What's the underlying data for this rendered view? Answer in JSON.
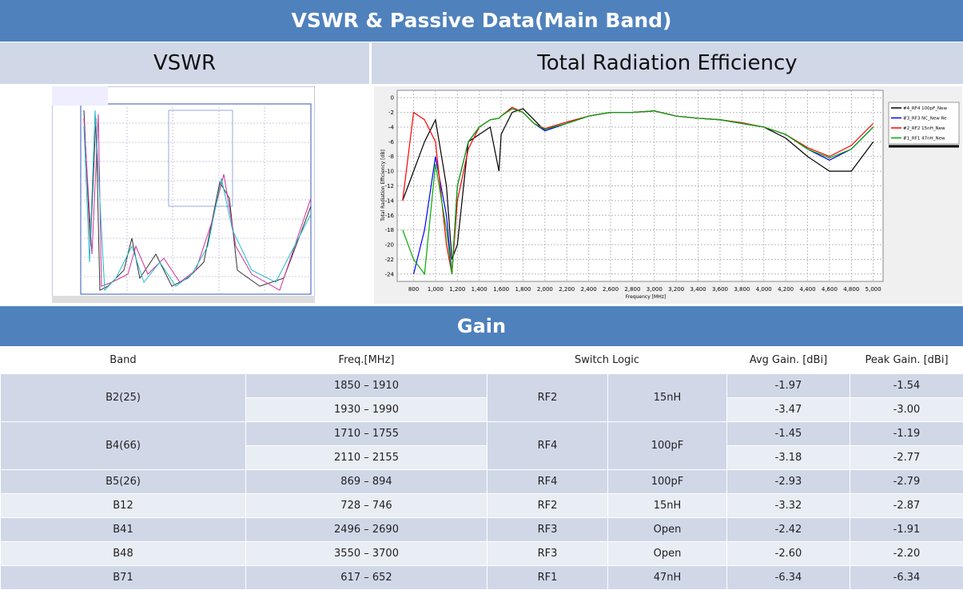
{
  "header": {
    "title": "VSWR & Passive Data(Main Band)"
  },
  "panels": {
    "left_title": "VSWR",
    "right_title": "Total Radiation Efficiency"
  },
  "efficiency_chart": {
    "type": "line",
    "xlabel": "Frequency [MHz]",
    "ylabel": "Total Radiation Efficiency [dB]",
    "xlim": [
      650,
      5090
    ],
    "ylim": [
      -25,
      1
    ],
    "xticks": [
      800,
      {
        "value": 1000,
        "label": "1,000"
      },
      {
        "value": 1200,
        "label": "1,200"
      },
      {
        "value": 1400,
        "label": "1,400"
      },
      {
        "value": 1600,
        "label": "1,600"
      },
      {
        "value": 1800,
        "label": "1,800"
      },
      {
        "value": 2000,
        "label": "2,000"
      },
      {
        "value": 2200,
        "label": "2,200"
      },
      {
        "value": 2400,
        "label": "2,400"
      },
      {
        "value": 2600,
        "label": "2,600"
      },
      {
        "value": 2800,
        "label": "2,800"
      },
      {
        "value": 3000,
        "label": "3,000"
      },
      {
        "value": 3200,
        "label": "3,200"
      },
      {
        "value": 3400,
        "label": "3,400"
      },
      {
        "value": 3600,
        "label": "3,600"
      },
      {
        "value": 3800,
        "label": "3,800"
      },
      {
        "value": 4000,
        "label": "4,000"
      },
      {
        "value": 4200,
        "label": "4,200"
      },
      {
        "value": 4400,
        "label": "4,400"
      },
      {
        "value": 4600,
        "label": "4,600"
      },
      {
        "value": 4800,
        "label": "4,800"
      },
      {
        "value": 5000,
        "label": "5,000"
      }
    ],
    "yticks": [
      0,
      -2,
      -4,
      -6,
      -8,
      -10,
      -12,
      -14,
      -16,
      -18,
      -20,
      -22,
      -24
    ],
    "grid": true,
    "x": [
      700,
      800,
      900,
      1000,
      1100,
      1150,
      1200,
      1300,
      1400,
      1500,
      1580,
      1600,
      1700,
      1800,
      1900,
      2000,
      2200,
      2400,
      2600,
      2800,
      3000,
      3200,
      3400,
      3600,
      3800,
      4000,
      4200,
      4400,
      4600,
      4800,
      5000
    ],
    "series": [
      {
        "name": "#4_RF4 100pF_New",
        "color": "#000000",
        "values": [
          -14,
          -10,
          -6,
          -3,
          -12,
          -22,
          -20,
          -6,
          -5,
          -4,
          -10,
          -5,
          -2,
          -1.5,
          -3,
          -4.5,
          -3.5,
          -2.5,
          -2,
          -2,
          -1.8,
          -2.5,
          -2.8,
          -3,
          -3.5,
          -4,
          -5.5,
          -8,
          -10,
          -10,
          -6
        ]
      },
      {
        "name": "#3_RF3 NC_New Re",
        "color": "#0000ff",
        "values": [
          null,
          -24,
          -18,
          -8,
          -16,
          -24,
          -12,
          -6,
          -4,
          -3,
          -2.8,
          -2.5,
          -1.5,
          -2,
          -3.5,
          -4.5,
          -3.5,
          -2.5,
          -2,
          -2,
          -1.8,
          -2.5,
          -2.8,
          -3,
          -3.5,
          -4,
          -5,
          -7,
          -8.5,
          -7,
          -4
        ]
      },
      {
        "name": "#2_RF2 15nH_New",
        "color": "#ff0000",
        "values": [
          -14,
          -2,
          -3,
          -6,
          -20,
          -24,
          -14,
          -7,
          -4,
          -3,
          -2.8,
          -2.5,
          -1.3,
          -2,
          -3.5,
          -4.2,
          -3.3,
          -2.5,
          -2,
          -2,
          -1.8,
          -2.5,
          -2.8,
          -3,
          -3.4,
          -4,
          -5,
          -6.8,
          -8,
          -6.5,
          -3.5
        ]
      },
      {
        "name": "#1_RF1 47nH_New",
        "color": "#00aa00",
        "values": [
          -18,
          -22,
          -24,
          -9,
          -18,
          -24,
          -12,
          -6,
          -4,
          -3,
          -2.8,
          -2.5,
          -1.5,
          -2,
          -3.5,
          -4.3,
          -3.5,
          -2.5,
          -2,
          -2,
          -1.8,
          -2.5,
          -2.8,
          -3,
          -3.5,
          -4,
          -5,
          -7,
          -8.2,
          -7,
          -4
        ]
      }
    ]
  },
  "gain": {
    "title": "Gain"
  },
  "table": {
    "header": [
      "Band",
      "Freq.[MHz]",
      "Switch Logic",
      "Avg Gain. [dBi]",
      "Peak Gain. [dBi]"
    ],
    "groups": [
      {
        "band": "B2(25)",
        "switch": "RF2",
        "component": "15nH",
        "rows": [
          {
            "freq": "1850 – 1910",
            "avg": "-1.97",
            "peak": "-1.54"
          },
          {
            "freq": "1930 – 1990",
            "avg": "-3.47",
            "peak": "-3.00"
          }
        ]
      },
      {
        "band": "B4(66)",
        "switch": "RF4",
        "component": "100pF",
        "rows": [
          {
            "freq": "1710 – 1755",
            "avg": "-1.45",
            "peak": "-1.19"
          },
          {
            "freq": "2110 – 2155",
            "avg": "-3.18",
            "peak": "-2.77"
          }
        ]
      },
      {
        "band": "B5(26)",
        "switch": "RF4",
        "component": "100pF",
        "rows": [
          {
            "freq": "869 – 894",
            "avg": "-2.93",
            "peak": "-2.79"
          }
        ]
      },
      {
        "band": "B12",
        "switch": "RF2",
        "component": "15nH",
        "rows": [
          {
            "freq": "728 – 746",
            "avg": "-3.32",
            "peak": "-2.87"
          }
        ]
      },
      {
        "band": "B41",
        "switch": "RF3",
        "component": "Open",
        "rows": [
          {
            "freq": "2496 – 2690",
            "avg": "-2.42",
            "peak": "-1.91"
          }
        ]
      },
      {
        "band": "B48",
        "switch": "RF3",
        "component": "Open",
        "rows": [
          {
            "freq": "3550 – 3700",
            "avg": "-2.60",
            "peak": "-2.20"
          }
        ]
      },
      {
        "band": "B71",
        "switch": "RF1",
        "component": "47nH",
        "rows": [
          {
            "freq": "617 – 652",
            "avg": "-6.34",
            "peak": "-6.34"
          }
        ]
      }
    ]
  }
}
